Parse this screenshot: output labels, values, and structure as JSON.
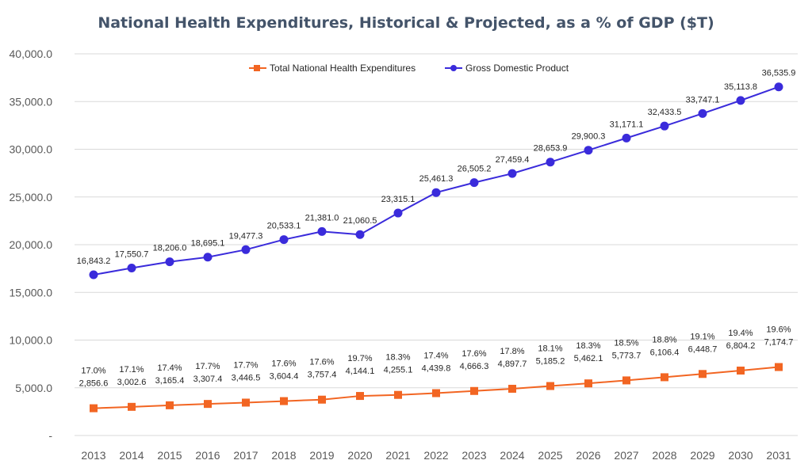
{
  "chart_data": {
    "type": "line",
    "title": "National Health Expenditures, Historical & Projected, as a % of GDP ($T)",
    "xlabel": "",
    "ylabel": "",
    "categories": [
      "2013",
      "2014",
      "2015",
      "2016",
      "2017",
      "2018",
      "2019",
      "2020",
      "2021",
      "2022",
      "2023",
      "2024",
      "2025",
      "2026",
      "2027",
      "2028",
      "2029",
      "2030",
      "2031"
    ],
    "ylim": [
      0,
      40000
    ],
    "yticks": [
      0,
      5000,
      10000,
      15000,
      20000,
      25000,
      30000,
      35000,
      40000
    ],
    "ytick_labels": [
      "-",
      "5,000.0",
      "10,000.0",
      "15,000.0",
      "20,000.0",
      "25,000.0",
      "30,000.0",
      "35,000.0",
      "40,000.0"
    ],
    "grid": true,
    "legend_position": "top",
    "series": [
      {
        "name": "Total National Health Expenditures",
        "color": "#F26522",
        "marker": "square",
        "values": [
          2856.6,
          3002.6,
          3165.4,
          3307.4,
          3446.5,
          3604.4,
          3757.4,
          4144.1,
          4255.1,
          4439.8,
          4666.3,
          4897.7,
          5185.2,
          5462.1,
          5773.7,
          6106.4,
          6448.7,
          6804.2,
          7174.7
        ],
        "value_labels": [
          "2,856.6",
          "3,002.6",
          "3,165.4",
          "3,307.4",
          "3,446.5",
          "3,604.4",
          "3,757.4",
          "4,144.1",
          "4,255.1",
          "4,439.8",
          "4,666.3",
          "4,897.7",
          "5,185.2",
          "5,462.1",
          "5,773.7",
          "6,106.4",
          "6,448.7",
          "6,804.2",
          "7,174.7"
        ],
        "percent_labels": [
          "17.0%",
          "17.1%",
          "17.4%",
          "17.7%",
          "17.7%",
          "17.6%",
          "17.6%",
          "19.7%",
          "18.3%",
          "17.4%",
          "17.6%",
          "17.8%",
          "18.1%",
          "18.3%",
          "18.5%",
          "18.8%",
          "19.1%",
          "19.4%",
          "19.6%"
        ]
      },
      {
        "name": "Gross Domestic Product",
        "color": "#3A2BDB",
        "marker": "circle",
        "values": [
          16843.2,
          17550.7,
          18206.0,
          18695.1,
          19477.3,
          20533.1,
          21381.0,
          21060.5,
          23315.1,
          25461.3,
          26505.2,
          27459.4,
          28653.9,
          29900.3,
          31171.1,
          32433.5,
          33747.1,
          35113.8,
          36535.9
        ],
        "value_labels": [
          "16,843.2",
          "17,550.7",
          "18,206.0",
          "18,695.1",
          "19,477.3",
          "20,533.1",
          "21,381.0",
          "21,060.5",
          "23,315.1",
          "25,461.3",
          "26,505.2",
          "27,459.4",
          "28,653.9",
          "29,900.3",
          "31,171.1",
          "32,433.5",
          "33,747.1",
          "35,113.8",
          "36,535.9"
        ]
      }
    ]
  }
}
